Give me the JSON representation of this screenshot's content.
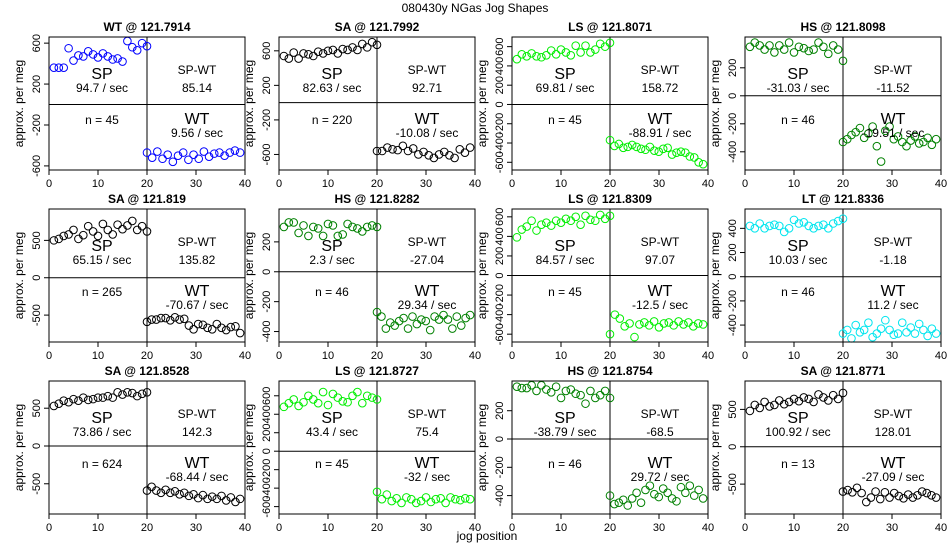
{
  "figure": {
    "title": "080430y   NGas Jog Shapes",
    "xlabel": "jog position"
  },
  "chart_data": [
    {
      "type": "scatter",
      "title": "WT @ 121.7914",
      "ylabel": "approx. per meg",
      "color": "#0000ff",
      "xlim": [
        0,
        40
      ],
      "ylim": [
        -640,
        660
      ],
      "xticks": [
        0,
        10,
        20,
        30,
        40
      ],
      "yticks": [
        -600,
        -200,
        200,
        600
      ],
      "sp_label": "SP",
      "sp_rate": "94.7 / sec",
      "wt_label": "WT",
      "wt_rate": "9.56 / sec",
      "diff_label": "SP-WT",
      "diff_value": "85.14",
      "n_label": "n = 45",
      "sp": [
        360,
        360,
        360,
        550,
        430,
        480,
        470,
        520,
        490,
        460,
        500,
        470,
        440,
        450,
        420,
        620,
        560,
        530,
        600,
        570
      ],
      "wt": [
        -470,
        -520,
        -460,
        -530,
        -490,
        -560,
        -500,
        -470,
        -540,
        -490,
        -530,
        -460,
        -510,
        -480,
        -470,
        -500,
        -470,
        -450,
        -470
      ]
    },
    {
      "type": "scatter",
      "title": "SA @ 121.7992",
      "ylabel": "approx. per meg",
      "color": "#000000",
      "xlim": [
        0,
        40
      ],
      "ylim": [
        -780,
        760
      ],
      "xticks": [
        0,
        10,
        20,
        30,
        40
      ],
      "yticks": [
        -600,
        -200,
        200,
        600
      ],
      "sp_label": "SP",
      "sp_rate": "82.63 / sec",
      "wt_label": "WT",
      "wt_rate": "-10.08 / sec",
      "diff_label": "SP-WT",
      "diff_value": "92.71",
      "n_label": "n = 220",
      "sp": [
        540,
        510,
        580,
        510,
        570,
        560,
        540,
        590,
        570,
        600,
        610,
        570,
        620,
        610,
        640,
        610,
        680,
        640,
        700,
        670
      ],
      "wt": [
        -560,
        -560,
        -520,
        -540,
        -550,
        -500,
        -560,
        -530,
        -600,
        -570,
        -610,
        -640,
        -600,
        -570,
        -610,
        -640,
        -540,
        -580,
        -520
      ]
    },
    {
      "type": "scatter",
      "title": "LS @ 121.8071",
      "ylabel": "approx. per meg",
      "color": "#00ee00",
      "xlim": [
        0,
        40
      ],
      "ylim": [
        -680,
        700
      ],
      "xticks": [
        0,
        10,
        20,
        30,
        40
      ],
      "yticks": [
        -600,
        -400,
        -200,
        0,
        200,
        400,
        600
      ],
      "sp_label": "SP",
      "sp_rate": "69.81 / sec",
      "wt_label": "WT",
      "wt_rate": "-88.91 / sec",
      "diff_label": "SP-WT",
      "diff_value": "158.72",
      "n_label": "n = 45",
      "sp": [
        470,
        520,
        500,
        530,
        500,
        490,
        510,
        560,
        520,
        570,
        540,
        510,
        610,
        540,
        610,
        540,
        570,
        630,
        600,
        640
      ],
      "wt": [
        -370,
        -430,
        -410,
        -450,
        -440,
        -420,
        -440,
        -460,
        -470,
        -440,
        -480,
        -490,
        -460,
        -450,
        -520,
        -500,
        -490,
        -500,
        -540,
        -550,
        -600,
        -620
      ]
    },
    {
      "type": "scatter",
      "title": "HS @ 121.8098",
      "ylabel": "approx. per meg",
      "color": "#008000",
      "xlim": [
        0,
        40
      ],
      "ylim": [
        -530,
        420
      ],
      "xticks": [
        0,
        10,
        20,
        30,
        40
      ],
      "yticks": [
        -400,
        -200,
        0,
        200
      ],
      "sp_label": "SP",
      "sp_rate": "-31.03 / sec",
      "wt_label": "WT",
      "wt_rate": "-19.51 / sec",
      "diff_label": "SP-WT",
      "diff_value": "-11.52",
      "n_label": "n = 46",
      "sp": [
        350,
        380,
        360,
        330,
        360,
        310,
        360,
        330,
        380,
        310,
        350,
        340,
        320,
        330,
        380,
        350,
        300,
        360,
        330,
        250
      ],
      "wt": [
        -330,
        -310,
        -280,
        -260,
        -230,
        -300,
        -270,
        -220,
        -360,
        -470,
        -250,
        -220,
        -310,
        -290,
        -330,
        -360,
        -320,
        -290,
        -340,
        -330,
        -300,
        -350,
        -310
      ]
    },
    {
      "type": "scatter",
      "title": "SA @ 121.819",
      "ylabel": "approx. per meg",
      "color": "#000000",
      "xlim": [
        0,
        40
      ],
      "ylim": [
        -860,
        920
      ],
      "xticks": [
        0,
        10,
        20,
        30,
        40
      ],
      "yticks": [
        -500,
        0,
        500
      ],
      "sp_label": "SP",
      "sp_rate": "65.15 / sec",
      "wt_label": "WT",
      "wt_rate": "-70.67 / sec",
      "diff_label": "SP-WT",
      "diff_value": "135.82",
      "n_label": "n = 265",
      "sp": [
        500,
        520,
        560,
        580,
        640,
        520,
        570,
        690,
        620,
        560,
        720,
        640,
        580,
        710,
        650,
        700,
        760,
        640,
        690,
        620
      ],
      "wt": [
        -590,
        -560,
        -560,
        -540,
        -540,
        -570,
        -530,
        -560,
        -550,
        -640,
        -690,
        -620,
        -630,
        -670,
        -690,
        -620,
        -670,
        -700,
        -660,
        -650,
        -740
      ]
    },
    {
      "type": "scatter",
      "title": "HS @ 121.8282",
      "ylabel": "approx. per meg",
      "color": "#008000",
      "xlim": [
        0,
        40
      ],
      "ylim": [
        -470,
        420
      ],
      "xticks": [
        0,
        10,
        20,
        30,
        40
      ],
      "yticks": [
        -400,
        -200,
        0,
        200
      ],
      "sp_label": "SP",
      "sp_rate": "2.3 / sec",
      "wt_label": "WT",
      "wt_rate": "29.34 / sec",
      "diff_label": "SP-WT",
      "diff_value": "-27.04",
      "n_label": "n = 46",
      "sp": [
        300,
        330,
        330,
        260,
        310,
        240,
        300,
        290,
        240,
        320,
        310,
        240,
        250,
        320,
        300,
        290,
        270,
        300,
        310,
        300
      ],
      "wt": [
        -270,
        -300,
        -380,
        -340,
        -360,
        -330,
        -310,
        -380,
        -300,
        -350,
        -320,
        -330,
        -390,
        -300,
        -320,
        -290,
        -320,
        -380,
        -300,
        -360,
        -310,
        -290
      ]
    },
    {
      "type": "scatter",
      "title": "LS @ 121.8309",
      "ylabel": "approx. per meg",
      "color": "#00ee00",
      "xlim": [
        0,
        40
      ],
      "ylim": [
        -680,
        680
      ],
      "xticks": [
        0,
        10,
        20,
        30,
        40
      ],
      "yticks": [
        -600,
        -400,
        -200,
        0,
        200,
        400,
        600
      ],
      "sp_label": "SP",
      "sp_rate": "84.57 / sec",
      "wt_label": "WT",
      "wt_rate": "-12.5 / sec",
      "diff_label": "SP-WT",
      "diff_value": "97.07",
      "n_label": "n = 45",
      "sp": [
        390,
        470,
        500,
        560,
        460,
        520,
        540,
        510,
        560,
        540,
        580,
        560,
        600,
        520,
        610,
        570,
        560,
        620,
        580,
        610
      ],
      "wt": [
        -600,
        -400,
        -440,
        -520,
        -490,
        -630,
        -500,
        -480,
        -510,
        -470,
        -530,
        -490,
        -480,
        -510,
        -470,
        -500,
        -480,
        -520,
        -490,
        -500
      ]
    },
    {
      "type": "scatter",
      "title": "LT @ 121.8336",
      "ylabel": "approx. per meg",
      "color": "#00e5ee",
      "xlim": [
        0,
        40
      ],
      "ylim": [
        -540,
        560
      ],
      "xticks": [
        0,
        10,
        20,
        30,
        40
      ],
      "yticks": [
        -400,
        -200,
        0,
        200,
        400
      ],
      "sp_label": "SP",
      "sp_rate": "10.03 / sec",
      "wt_label": "WT",
      "wt_rate": "11.2 / sec",
      "diff_label": "SP-WT",
      "diff_value": "-1.18",
      "n_label": "n = 46",
      "sp": [
        420,
        400,
        440,
        400,
        420,
        430,
        420,
        370,
        400,
        470,
        440,
        450,
        420,
        400,
        420,
        430,
        400,
        440,
        460,
        480
      ],
      "wt": [
        -470,
        -440,
        -510,
        -400,
        -460,
        -440,
        -380,
        -500,
        -470,
        -430,
        -360,
        -440,
        -480,
        -470,
        -380,
        -460,
        -420,
        -470,
        -390,
        -440,
        -490,
        -430,
        -470
      ]
    },
    {
      "type": "scatter",
      "title": "SA @ 121.8528",
      "ylabel": "approx. per meg",
      "color": "#000000",
      "xlim": [
        0,
        40
      ],
      "ylim": [
        -900,
        860
      ],
      "xticks": [
        0,
        10,
        20,
        30,
        40
      ],
      "yticks": [
        -500,
        0,
        500
      ],
      "sp_label": "SP",
      "sp_rate": "73.86 / sec",
      "wt_label": "WT",
      "wt_rate": "-68.44 / sec",
      "diff_label": "SP-WT",
      "diff_value": "142.3",
      "n_label": "n = 624",
      "sp": [
        530,
        560,
        600,
        580,
        620,
        600,
        640,
        610,
        620,
        640,
        640,
        660,
        640,
        710,
        680,
        710,
        700,
        660,
        690,
        710
      ],
      "wt": [
        -590,
        -540,
        -590,
        -620,
        -580,
        -620,
        -600,
        -640,
        -620,
        -660,
        -640,
        -690,
        -650,
        -700,
        -670,
        -700,
        -660,
        -720,
        -680,
        -740,
        -700
      ]
    },
    {
      "type": "scatter",
      "title": "LS @ 121.8727",
      "ylabel": "approx. per meg",
      "color": "#00ee00",
      "xlim": [
        0,
        40
      ],
      "ylim": [
        -680,
        760
      ],
      "xticks": [
        0,
        10,
        20,
        30,
        40
      ],
      "yticks": [
        -600,
        -400,
        -200,
        0,
        200,
        400,
        600
      ],
      "sp_label": "SP",
      "sp_rate": "43.4 / sec",
      "wt_label": "WT",
      "wt_rate": "-32 / sec",
      "diff_label": "SP-WT",
      "diff_value": "75.4",
      "n_label": "n = 45",
      "sp": [
        480,
        520,
        560,
        490,
        530,
        600,
        560,
        520,
        640,
        500,
        620,
        580,
        540,
        530,
        600,
        640,
        520,
        600,
        580,
        560
      ],
      "wt": [
        -440,
        -520,
        -470,
        -540,
        -510,
        -560,
        -500,
        -520,
        -560,
        -540,
        -500,
        -550,
        -520,
        -510,
        -560,
        -500,
        -520,
        -530,
        -510,
        -520
      ]
    },
    {
      "type": "scatter",
      "title": "HS @ 121.8754",
      "ylabel": "approx. per meg",
      "color": "#008000",
      "xlim": [
        0,
        40
      ],
      "ylim": [
        -530,
        410
      ],
      "xticks": [
        0,
        10,
        20,
        30,
        40
      ],
      "yticks": [
        -400,
        -200,
        0,
        200
      ],
      "sp_label": "SP",
      "sp_rate": "-38.79 / sec",
      "wt_label": "WT",
      "wt_rate": "29.72 / sec",
      "diff_label": "SP-WT",
      "diff_value": "-68.5",
      "n_label": "n = 46",
      "sp": [
        370,
        360,
        360,
        380,
        340,
        380,
        350,
        330,
        370,
        290,
        340,
        350,
        320,
        310,
        250,
        340,
        290,
        310,
        340,
        290
      ],
      "wt": [
        -400,
        -460,
        -450,
        -430,
        -470,
        -420,
        -380,
        -450,
        -360,
        -330,
        -390,
        -410,
        -350,
        -380,
        -420,
        -440,
        -340,
        -380,
        -330,
        -400,
        -360,
        -420
      ]
    },
    {
      "type": "scatter",
      "title": "SA @ 121.8771",
      "ylabel": "approx. per meg",
      "color": "#000000",
      "xlim": [
        0,
        40
      ],
      "ylim": [
        -900,
        880
      ],
      "xticks": [
        0,
        10,
        20,
        30,
        40
      ],
      "yticks": [
        -500,
        0,
        500
      ],
      "sp_label": "SP",
      "sp_rate": "100.92 / sec",
      "wt_label": "WT",
      "wt_rate": "-27.09 / sec",
      "diff_label": "SP-WT",
      "diff_value": "128.01",
      "n_label": "n = 13",
      "sp": [
        480,
        560,
        520,
        600,
        540,
        560,
        620,
        570,
        600,
        640,
        610,
        660,
        640,
        600,
        700,
        660,
        620,
        690,
        640,
        720
      ],
      "wt": [
        -600,
        -580,
        -610,
        -550,
        -620,
        -740,
        -680,
        -600,
        -700,
        -610,
        -680,
        -620,
        -660,
        -690,
        -640,
        -680,
        -650,
        -600,
        -620,
        -650,
        -680
      ]
    }
  ]
}
